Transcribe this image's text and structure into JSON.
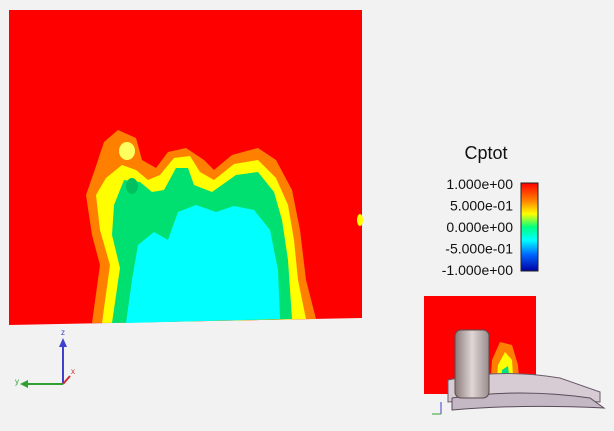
{
  "legend": {
    "title": "Cptot",
    "labels": [
      "1.000e+00",
      "5.000e-01",
      "0.000e+00",
      "-5.000e-01",
      "-1.000e+00"
    ]
  },
  "triad": {
    "z": "z",
    "y": "y",
    "x": "x"
  }
}
